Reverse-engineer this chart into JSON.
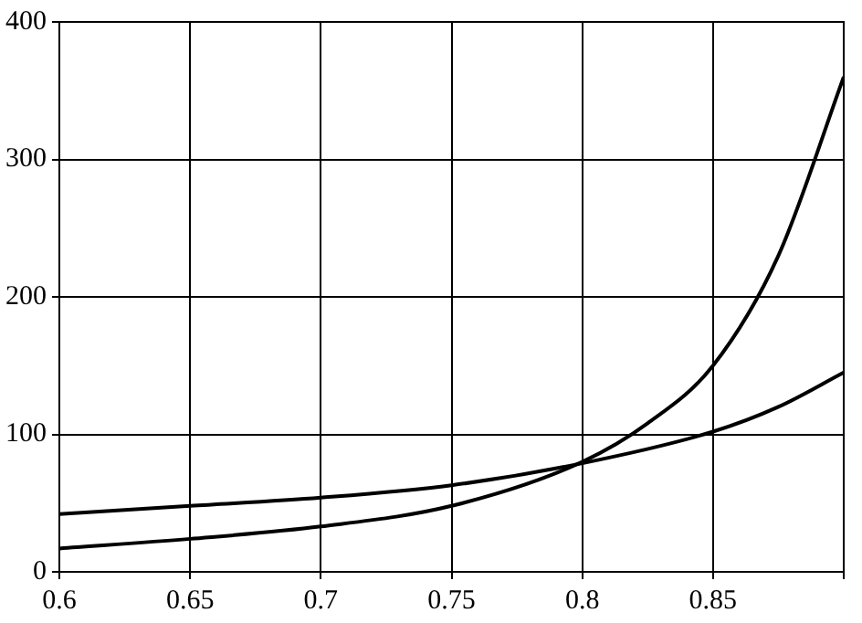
{
  "chart_data": {
    "type": "line",
    "series": [
      {
        "color": "#000000",
        "x": [
          0.6,
          0.65,
          0.7,
          0.75,
          0.8,
          0.825,
          0.85,
          0.875,
          0.9
        ],
        "values": [
          17,
          24,
          33,
          48,
          80,
          108,
          150,
          230,
          360
        ]
      },
      {
        "color": "#000000",
        "x": [
          0.6,
          0.65,
          0.7,
          0.75,
          0.8,
          0.85,
          0.875,
          0.9
        ],
        "values": [
          42,
          48,
          54,
          63,
          79,
          102,
          120,
          145
        ]
      }
    ],
    "xlim": [
      0.6,
      0.9
    ],
    "xticks": [
      0.6,
      0.65,
      0.7,
      0.75,
      0.8,
      0.85,
      {
        "value": 0.9,
        "label": null
      }
    ],
    "ylim": [
      0,
      400
    ],
    "yticks": [
      0,
      100,
      200,
      300,
      400
    ],
    "grid": true,
    "legend": false,
    "marker": "none",
    "line_style": "solid"
  }
}
